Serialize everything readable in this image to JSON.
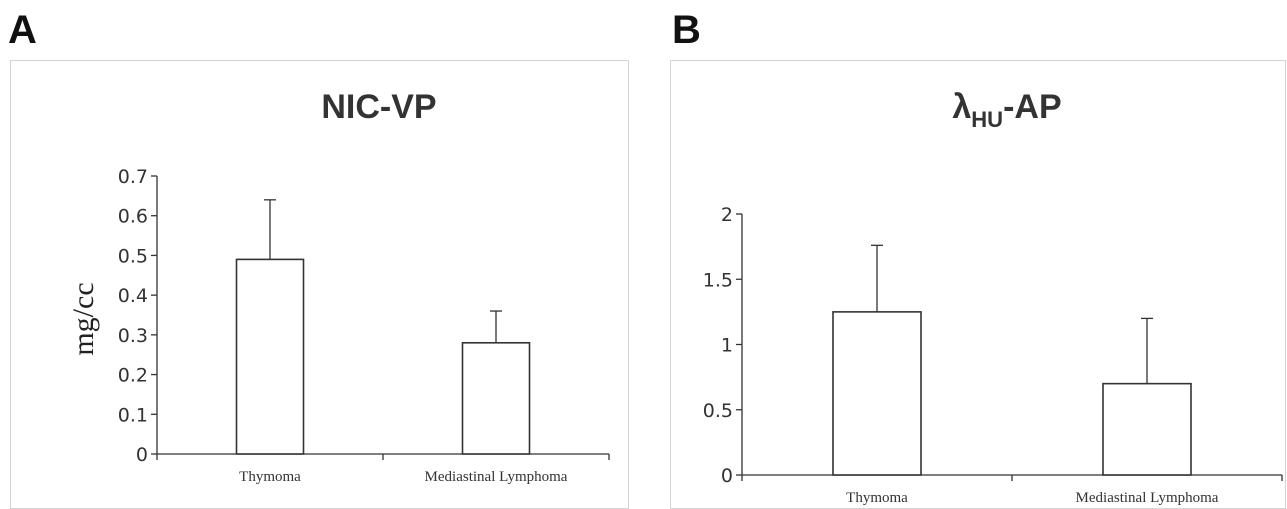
{
  "panels": [
    {
      "letter": "A"
    },
    {
      "letter": "B"
    }
  ],
  "chart_data": [
    {
      "type": "bar",
      "title": "NIC-VP",
      "xlabel": "",
      "ylabel": "mg/cc",
      "categories": [
        "Thymoma",
        "Mediastinal Lymphoma"
      ],
      "values": [
        0.49,
        0.28
      ],
      "error_upper": [
        0.15,
        0.08
      ],
      "ylim": [
        0,
        0.7
      ],
      "yticks": [
        "0",
        "0.1",
        "0.2",
        "0.3",
        "0.4",
        "0.5",
        "0.6",
        "0.7"
      ],
      "grid": false,
      "legend": "none"
    },
    {
      "type": "bar",
      "title": "λ",
      "title_subscript": "HU",
      "title_suffix": "-AP",
      "xlabel": "",
      "ylabel": "",
      "categories": [
        "Thymoma",
        "Mediastinal Lymphoma"
      ],
      "values": [
        1.25,
        0.7
      ],
      "error_upper": [
        0.51,
        0.5
      ],
      "ylim": [
        0,
        2
      ],
      "yticks": [
        "0",
        "0.5",
        "1",
        "1.5",
        "2"
      ],
      "grid": false,
      "legend": "none"
    }
  ]
}
